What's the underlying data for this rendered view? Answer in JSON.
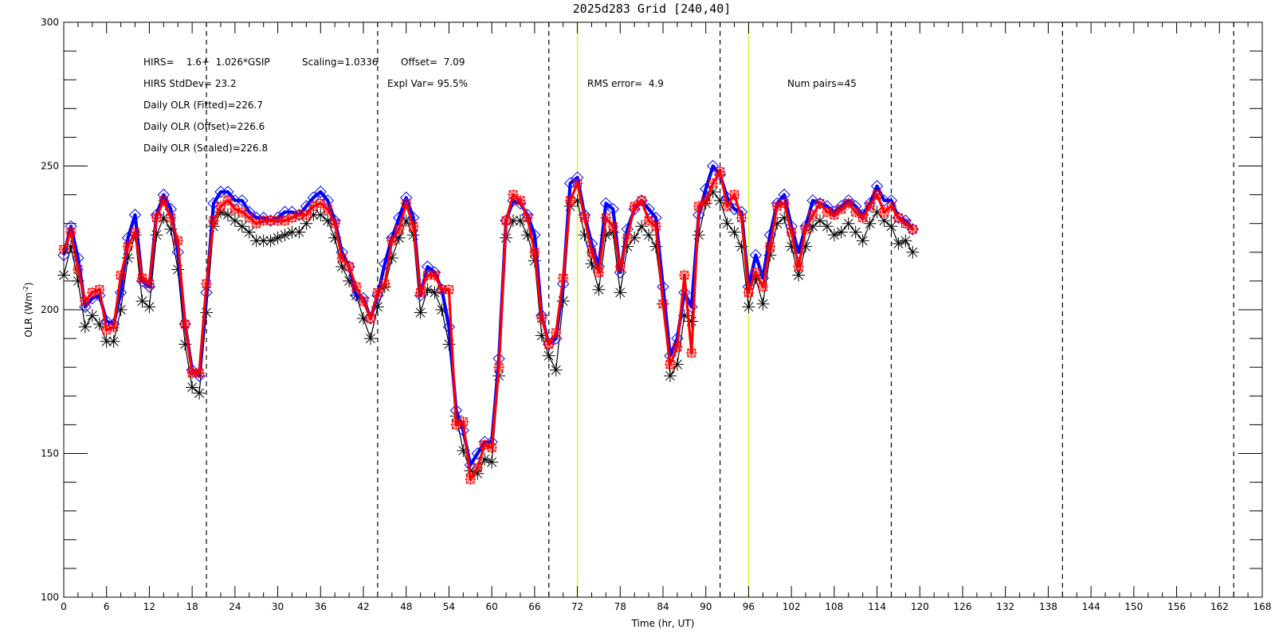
{
  "chart_data": {
    "type": "line",
    "title": "2025d283 Grid [240,40]",
    "xlabel": "Time (hr, UT)",
    "ylabel_main": "OLR (Wm",
    "ylabel_sup": "-2",
    "ylabel_tail": ")",
    "xlim": [
      0,
      168
    ],
    "ylim": [
      100,
      300
    ],
    "x_ticks": [
      0,
      6,
      12,
      18,
      24,
      30,
      36,
      42,
      48,
      54,
      60,
      66,
      72,
      78,
      84,
      90,
      96,
      102,
      108,
      114,
      120,
      126,
      132,
      138,
      144,
      150,
      156,
      162,
      168
    ],
    "y_ticks": [
      100,
      150,
      200,
      250,
      300
    ],
    "dashed_vlines": [
      20,
      44,
      68,
      92,
      116,
      140,
      164
    ],
    "highlight_vlines": [
      72,
      96
    ],
    "highlight_color": "#ccff33",
    "annotations": {
      "line1_a": "HIRS=    1.6+  1.026*GSIP",
      "line1_b": "Scaling=1.0336",
      "line1_c": "Offset=  7.09",
      "line2_a": "HIRS StdDev= 23.2",
      "line2_b": "Expl Var= 95.5%",
      "line2_c": "RMS error=  4.9",
      "line2_d": "Num pairs=45",
      "line3": "Daily OLR (Fitted)=226.7",
      "line4": "Daily OLR (Offset)=226.6",
      "line5": "Daily OLR (Scaled)=226.8"
    },
    "series": [
      {
        "color": "#000000",
        "marker": "asterisk",
        "x": [
          0,
          1,
          2,
          3,
          4,
          5,
          6,
          7,
          8,
          9,
          10,
          11,
          12,
          13,
          14,
          15,
          16,
          17,
          18,
          19,
          20,
          21,
          22,
          23,
          24,
          25,
          26,
          27,
          28,
          29,
          30,
          31,
          32,
          33,
          34,
          35,
          36,
          37,
          38,
          39,
          40,
          41,
          42,
          43,
          44,
          45,
          46,
          47,
          48,
          49,
          50,
          51,
          52,
          53,
          54,
          55,
          56,
          57,
          58,
          59,
          60,
          61,
          62,
          63,
          64,
          65,
          66,
          67,
          68,
          69,
          70,
          71,
          72,
          73,
          74,
          75,
          76,
          77,
          78,
          79,
          80,
          81,
          82,
          83,
          84,
          85,
          86,
          87,
          88,
          89,
          90,
          91,
          92,
          93,
          94,
          95,
          96,
          97,
          98,
          99,
          100,
          101,
          102,
          103,
          104,
          105,
          106,
          107,
          108,
          109,
          110,
          111,
          112,
          113,
          114,
          115,
          116,
          117,
          118,
          119
        ],
        "y": [
          212,
          222,
          210,
          194,
          198,
          195,
          189,
          189,
          200,
          218,
          226,
          203,
          201,
          226,
          232,
          228,
          214,
          188,
          173,
          171,
          199,
          229,
          234,
          233,
          231,
          229,
          227,
          224,
          224,
          224,
          225,
          226,
          227,
          227,
          230,
          233,
          233,
          231,
          225,
          215,
          210,
          205,
          197,
          190,
          201,
          208,
          218,
          225,
          231,
          226,
          199,
          207,
          206,
          200,
          188,
          163,
          151,
          144,
          143,
          148,
          147,
          177,
          225,
          231,
          231,
          226,
          217,
          191,
          184,
          179,
          203,
          236,
          238,
          226,
          216,
          207,
          226,
          227,
          206,
          222,
          225,
          229,
          226,
          222,
          202,
          177,
          181,
          198,
          196,
          226,
          237,
          241,
          238,
          230,
          227,
          222,
          201,
          211,
          202,
          219,
          230,
          232,
          222,
          212,
          222,
          229,
          231,
          229,
          226,
          227,
          230,
          227,
          224,
          230,
          234,
          231,
          229,
          223,
          224,
          220
        ]
      },
      {
        "color": "#ff0000",
        "marker": "asterisk-box",
        "x": [
          0,
          1,
          2,
          3,
          4,
          5,
          6,
          7,
          8,
          9,
          10,
          11,
          12,
          13,
          14,
          15,
          16,
          17,
          18,
          19,
          20,
          21,
          22,
          23,
          24,
          25,
          26,
          27,
          28,
          29,
          30,
          31,
          32,
          33,
          34,
          35,
          36,
          37,
          38,
          39,
          40,
          41,
          42,
          43,
          44,
          45,
          46,
          47,
          48,
          49,
          50,
          51,
          52,
          53,
          54,
          55,
          56,
          57,
          58,
          59,
          60,
          61,
          62,
          63,
          64,
          65,
          66,
          67,
          68,
          69,
          70,
          71,
          72,
          73,
          74,
          75,
          76,
          77,
          78,
          79,
          80,
          81,
          82,
          83,
          84,
          85,
          86,
          87,
          88,
          89,
          90,
          91,
          92,
          93,
          94,
          95,
          96,
          97,
          98,
          99,
          100,
          101,
          102,
          103,
          104,
          105,
          106,
          107,
          108,
          109,
          110,
          111,
          112,
          113,
          114,
          115,
          116,
          117,
          118,
          119
        ],
        "y": [
          221,
          227,
          214,
          203,
          206,
          207,
          193,
          194,
          212,
          222,
          227,
          211,
          209,
          232,
          238,
          232,
          224,
          195,
          178,
          178,
          209,
          231,
          236,
          238,
          235,
          234,
          232,
          230,
          231,
          231,
          231,
          231,
          232,
          233,
          233,
          236,
          237,
          235,
          230,
          218,
          215,
          208,
          203,
          197,
          206,
          209,
          224,
          228,
          237,
          229,
          206,
          212,
          212,
          207,
          207,
          160,
          161,
          141,
          145,
          153,
          152,
          180,
          231,
          240,
          238,
          232,
          220,
          197,
          188,
          192,
          211,
          238,
          244,
          232,
          220,
          213,
          232,
          229,
          215,
          225,
          236,
          238,
          231,
          229,
          202,
          181,
          187,
          212,
          185,
          236,
          238,
          244,
          248,
          236,
          240,
          232,
          206,
          213,
          208,
          222,
          236,
          237,
          227,
          215,
          228,
          233,
          237,
          234,
          233,
          235,
          237,
          234,
          232,
          236,
          240,
          234,
          236,
          232,
          230,
          228
        ]
      },
      {
        "color": "#0000ff",
        "marker": "diamond",
        "x": [
          0,
          1,
          2,
          3,
          4,
          5,
          6,
          7,
          8,
          9,
          10,
          11,
          12,
          13,
          14,
          15,
          16,
          17,
          18,
          19,
          20,
          21,
          22,
          23,
          24,
          25,
          26,
          27,
          28,
          29,
          30,
          31,
          32,
          33,
          34,
          35,
          36,
          37,
          38,
          39,
          40,
          41,
          42,
          43,
          44,
          45,
          46,
          47,
          48,
          49,
          50,
          51,
          52,
          53,
          54,
          55,
          56,
          57,
          58,
          59,
          60,
          61,
          62,
          63,
          64,
          65,
          66,
          67,
          68,
          69,
          70,
          71,
          72,
          73,
          74,
          75,
          76,
          77,
          78,
          79,
          80,
          81,
          82,
          83,
          84,
          85,
          86,
          87,
          88,
          89,
          90,
          91,
          92,
          93,
          94,
          95,
          96,
          97,
          98,
          99,
          100,
          101,
          102,
          103,
          104,
          105,
          106,
          107,
          108,
          109,
          110,
          111,
          112,
          113,
          114,
          115,
          116,
          117,
          118,
          119
        ],
        "y": [
          219,
          229,
          218,
          201,
          204,
          205,
          196,
          195,
          206,
          225,
          233,
          210,
          208,
          233,
          240,
          235,
          220,
          195,
          179,
          177,
          206,
          237,
          241,
          241,
          238,
          238,
          234,
          232,
          232,
          231,
          232,
          234,
          234,
          233,
          236,
          239,
          241,
          238,
          231,
          220,
          215,
          205,
          204,
          197,
          205,
          216,
          225,
          232,
          239,
          232,
          205,
          215,
          213,
          207,
          194,
          165,
          158,
          146,
          150,
          154,
          154,
          183,
          231,
          238,
          237,
          233,
          226,
          198,
          188,
          190,
          209,
          244,
          246,
          233,
          223,
          215,
          237,
          235,
          213,
          228,
          235,
          238,
          235,
          232,
          208,
          184,
          190,
          206,
          201,
          233,
          242,
          250,
          247,
          239,
          235,
          234,
          208,
          219,
          211,
          226,
          237,
          240,
          229,
          220,
          229,
          238,
          237,
          236,
          234,
          236,
          238,
          236,
          233,
          237,
          243,
          238,
          238,
          232,
          231,
          228
        ]
      }
    ]
  }
}
